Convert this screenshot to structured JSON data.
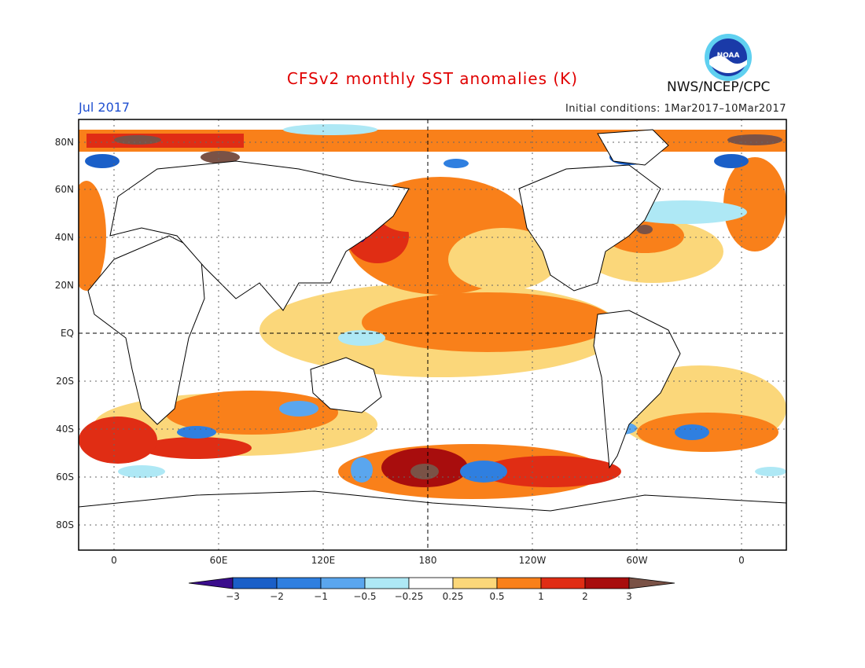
{
  "header": {
    "title": "CFSv2 monthly SST anomalies (K)",
    "valid_month": "Jul 2017",
    "initial_conditions": "Initial conditions: 1Mar2017–10Mar2017",
    "agency": "NWS/NCEP/CPC",
    "logo_text": "NOAA"
  },
  "map": {
    "lat_labels": [
      "80N",
      "60N",
      "40N",
      "20N",
      "EQ",
      "20S",
      "40S",
      "60S",
      "80S"
    ],
    "lon_labels": [
      "0",
      "60E",
      "120E",
      "180",
      "120W",
      "60W",
      "0"
    ]
  },
  "colorbar": {
    "labels": [
      "−3",
      "−2",
      "−1",
      "−0.5",
      "−0.25",
      "0.25",
      "0.5",
      "1",
      "2",
      "3"
    ],
    "colors": {
      "lt_neg3": "#3a0d8c",
      "neg3_neg2": "#1a5fc8",
      "neg2_neg1": "#2f7fe0",
      "neg1_neg05": "#5aa6ee",
      "neg05_neg025": "#aee8f5",
      "neutral": "#ffffff",
      "p025_p05": "#fbd77a",
      "p05_p1": "#f9801a",
      "p1_p2": "#e02d14",
      "p2_p3": "#a80d0d",
      "gt_3": "#7a5246"
    }
  }
}
